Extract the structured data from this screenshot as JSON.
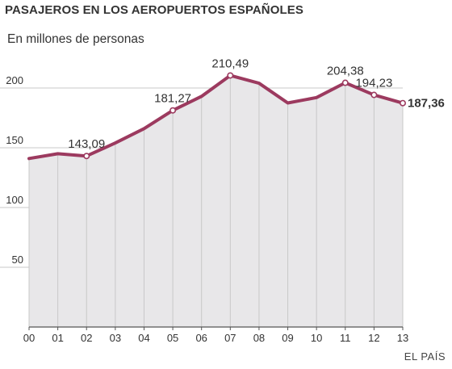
{
  "title": "PASAJEROS EN LOS AEROPUERTOS ESPAÑOLES",
  "subtitle": "En millones de personas",
  "source": "EL PAÍS",
  "colors": {
    "line": "#9c3a5f",
    "area": "#e8e7e9",
    "grid": "#c8c8c8",
    "axis": "#555555"
  },
  "chart_data": {
    "type": "area",
    "categories": [
      "00",
      "01",
      "02",
      "03",
      "04",
      "05",
      "06",
      "07",
      "08",
      "09",
      "10",
      "11",
      "12",
      "13"
    ],
    "values": [
      141,
      145,
      143.09,
      154,
      166,
      181.27,
      193,
      210.49,
      204,
      187.5,
      192,
      204.38,
      194.23,
      187.36
    ],
    "labels": [
      {
        "index": 2,
        "text": "143,09"
      },
      {
        "index": 5,
        "text": "181,27"
      },
      {
        "index": 7,
        "text": "210,49"
      },
      {
        "index": 11,
        "text": "204,38"
      },
      {
        "index": 12,
        "text": "194,23"
      },
      {
        "index": 13,
        "text": "187,36",
        "bold": true
      }
    ],
    "yticks": [
      "50",
      "100",
      "150",
      "200"
    ],
    "ytick_values": [
      50,
      100,
      150,
      200
    ],
    "ylim": [
      0,
      230
    ],
    "grid": true,
    "xlabel": "",
    "ylabel": ""
  }
}
